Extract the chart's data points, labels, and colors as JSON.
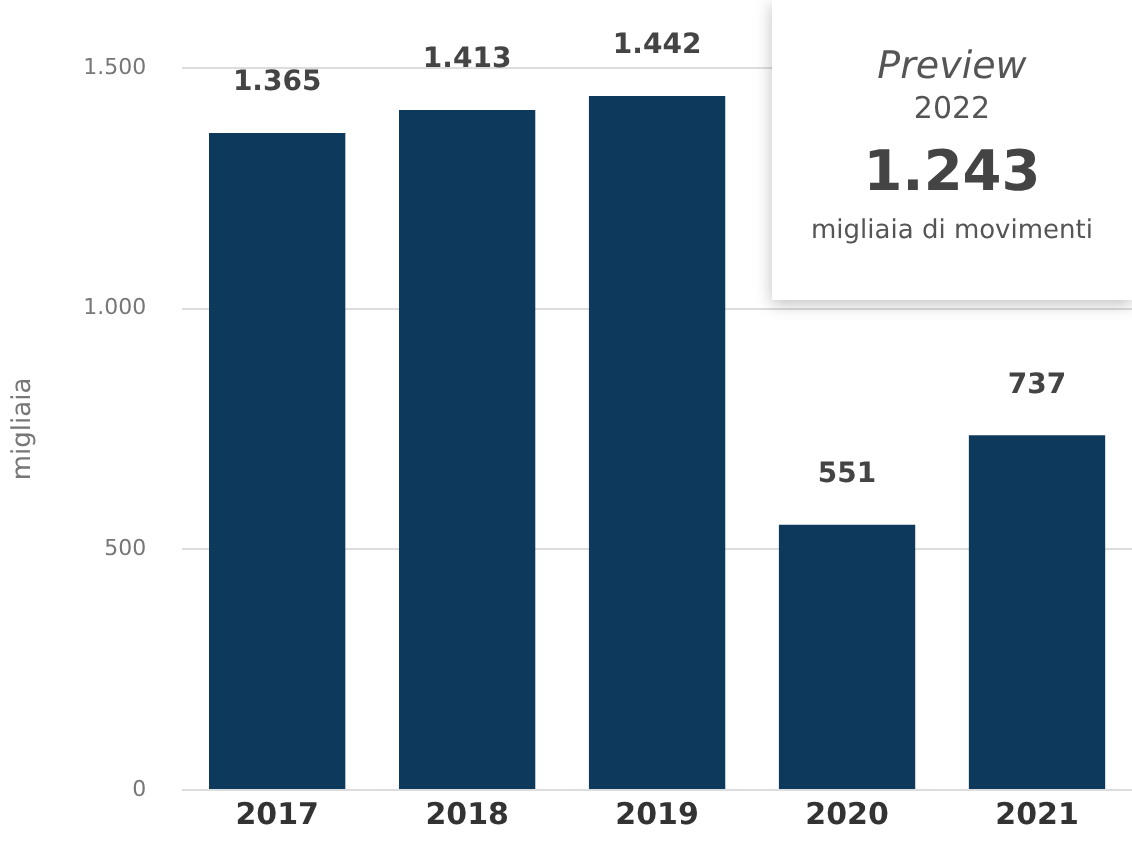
{
  "chart_data": {
    "type": "bar",
    "ylabel": "migliaia",
    "categories": [
      "2017",
      "2018",
      "2019",
      "2020",
      "2021"
    ],
    "values": [
      1365,
      1413,
      1442,
      551,
      737
    ],
    "value_labels": [
      "1.365",
      "1.413",
      "1.442",
      "551",
      "737"
    ],
    "color": "#0d3a5c",
    "ylim": [
      0,
      1500
    ],
    "yticks": [
      0,
      500,
      {
        "value": 1000,
        "label": "1.000"
      },
      {
        "value": 1500,
        "label": "1.500"
      }
    ],
    "grid": "y",
    "annotations": [
      "Preview",
      "2022",
      "1.243",
      "migliaia di movimenti"
    ]
  }
}
